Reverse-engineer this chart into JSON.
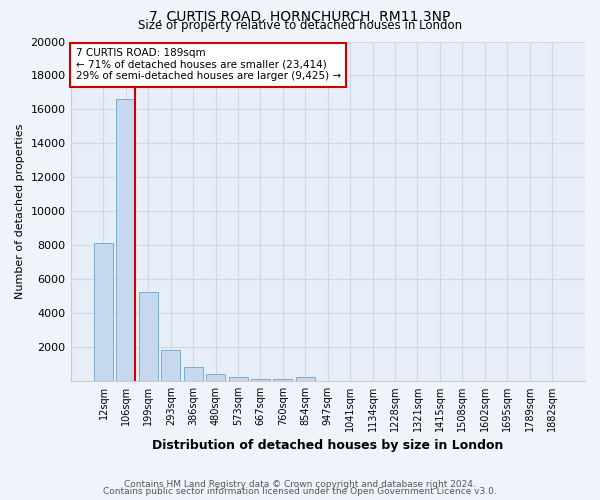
{
  "title1": "7, CURTIS ROAD, HORNCHURCH, RM11 3NP",
  "title2": "Size of property relative to detached houses in London",
  "xlabel": "Distribution of detached houses by size in London",
  "ylabel": "Number of detached properties",
  "categories": [
    "12sqm",
    "106sqm",
    "199sqm",
    "293sqm",
    "386sqm",
    "480sqm",
    "573sqm",
    "667sqm",
    "760sqm",
    "854sqm",
    "947sqm",
    "1041sqm",
    "1134sqm",
    "1228sqm",
    "1321sqm",
    "1415sqm",
    "1508sqm",
    "1602sqm",
    "1695sqm",
    "1789sqm",
    "1882sqm"
  ],
  "values": [
    8100,
    16600,
    5250,
    1800,
    800,
    380,
    200,
    130,
    110,
    200,
    0,
    0,
    0,
    0,
    0,
    0,
    0,
    0,
    0,
    0,
    0
  ],
  "bar_color": "#c5d8ed",
  "bar_edge_color": "#7aadd4",
  "vline_color": "#cc0000",
  "annotation_line1": "7 CURTIS ROAD: 189sqm",
  "annotation_line2": "← 71% of detached houses are smaller (23,414)",
  "annotation_line3": "29% of semi-detached houses are larger (9,425) →",
  "annotation_box_color": "#ffffff",
  "annotation_box_edge_color": "#cc0000",
  "ylim": [
    0,
    20000
  ],
  "yticks": [
    0,
    2000,
    4000,
    6000,
    8000,
    10000,
    12000,
    14000,
    16000,
    18000,
    20000
  ],
  "grid_color": "#d0d8e8",
  "bg_color": "#e8eef8",
  "fig_bg_color": "#f0f4fa",
  "footer1": "Contains HM Land Registry data © Crown copyright and database right 2024.",
  "footer2": "Contains public sector information licensed under the Open Government Licence v3.0."
}
